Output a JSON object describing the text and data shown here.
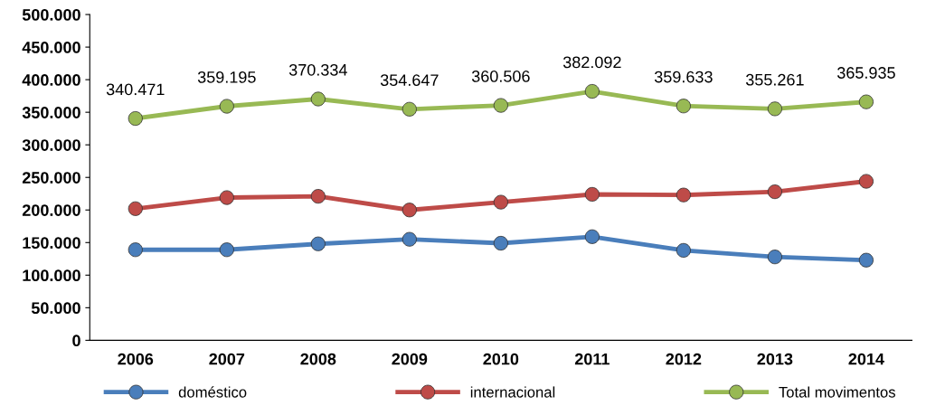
{
  "chart_data": {
    "type": "line",
    "categories": [
      "2006",
      "2007",
      "2008",
      "2009",
      "2010",
      "2011",
      "2012",
      "2013",
      "2014"
    ],
    "series": [
      {
        "name": "doméstico",
        "color": "#4a7ebb",
        "values": [
          139000,
          139000,
          148000,
          155000,
          149000,
          159000,
          138000,
          128000,
          123000
        ]
      },
      {
        "name": "internacional",
        "color": "#be4b48",
        "values": [
          202000,
          219000,
          221000,
          200000,
          212000,
          224000,
          223000,
          228000,
          244000
        ]
      },
      {
        "name": "Total movimentos",
        "color": "#98b954",
        "values": [
          340471,
          359195,
          370334,
          354647,
          360506,
          382092,
          359633,
          355261,
          365935
        ],
        "value_labels": [
          "340.471",
          "359.195",
          "370.334",
          "354.647",
          "360.506",
          "382.092",
          "359.633",
          "355.261",
          "365.935"
        ]
      }
    ],
    "ylim": [
      0,
      500000
    ],
    "yticks": [
      {
        "value": 0,
        "label": "0"
      },
      {
        "value": 50000,
        "label": "50.000"
      },
      {
        "value": 100000,
        "label": "100.000"
      },
      {
        "value": 150000,
        "label": "150.000"
      },
      {
        "value": 200000,
        "label": "200.000"
      },
      {
        "value": 250000,
        "label": "250.000"
      },
      {
        "value": 300000,
        "label": "300.000"
      },
      {
        "value": 350000,
        "label": "350.000"
      },
      {
        "value": 400000,
        "label": "400.000"
      },
      {
        "value": 450000,
        "label": "450.000"
      },
      {
        "value": 500000,
        "label": "500.000"
      }
    ],
    "grid": false,
    "legend": "bottom",
    "marker": "circle",
    "line_style": "solid"
  }
}
